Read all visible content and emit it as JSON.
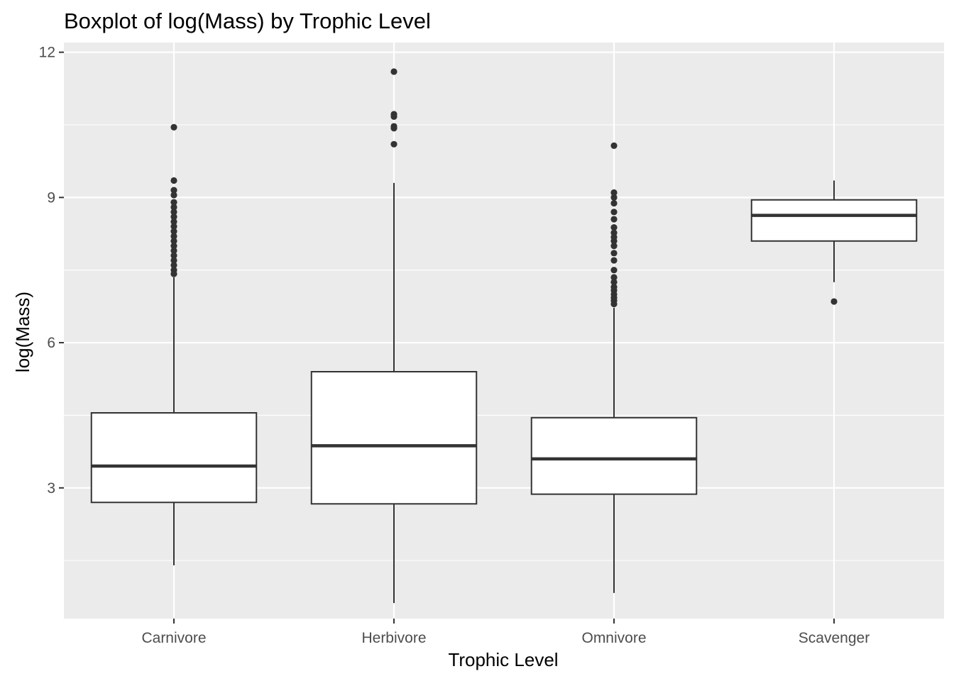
{
  "chart_data": {
    "type": "boxplot",
    "title": "Boxplot of log(Mass) by Trophic Level",
    "xlabel": "Trophic Level",
    "ylabel": "log(Mass)",
    "ylim": [
      0.3,
      12.2
    ],
    "yticks": [
      3,
      6,
      9,
      12
    ],
    "grid": true,
    "categories": [
      "Carnivore",
      "Herbivore",
      "Omnivore",
      "Scavenger"
    ],
    "boxes": [
      {
        "category": "Carnivore",
        "lower_whisker": 1.4,
        "q1": 2.7,
        "median": 3.45,
        "q3": 4.55,
        "upper_whisker": 7.35,
        "outliers": [
          10.45,
          9.35,
          9.15,
          9.05,
          8.9,
          8.8,
          8.7,
          8.6,
          8.5,
          8.4,
          8.3,
          8.2,
          8.1,
          8.0,
          7.9,
          7.8,
          7.7,
          7.6,
          7.5,
          7.42
        ]
      },
      {
        "category": "Herbivore",
        "lower_whisker": 0.62,
        "q1": 2.67,
        "median": 3.87,
        "q3": 5.4,
        "upper_whisker": 9.3,
        "outliers": [
          11.6,
          10.72,
          10.67,
          10.47,
          10.43,
          10.1
        ]
      },
      {
        "category": "Omnivore",
        "lower_whisker": 0.83,
        "q1": 2.87,
        "median": 3.6,
        "q3": 4.45,
        "upper_whisker": 6.72,
        "outliers": [
          10.07,
          9.1,
          9.0,
          8.88,
          8.7,
          8.55,
          8.38,
          8.27,
          8.18,
          8.1,
          8.0,
          7.85,
          7.7,
          7.5,
          7.35,
          7.25,
          7.15,
          7.08,
          7.0,
          6.93,
          6.87,
          6.8
        ]
      },
      {
        "category": "Scavenger",
        "lower_whisker": 7.25,
        "q1": 8.1,
        "median": 8.63,
        "q3": 8.95,
        "upper_whisker": 9.35,
        "outliers": [
          6.85
        ]
      }
    ]
  }
}
